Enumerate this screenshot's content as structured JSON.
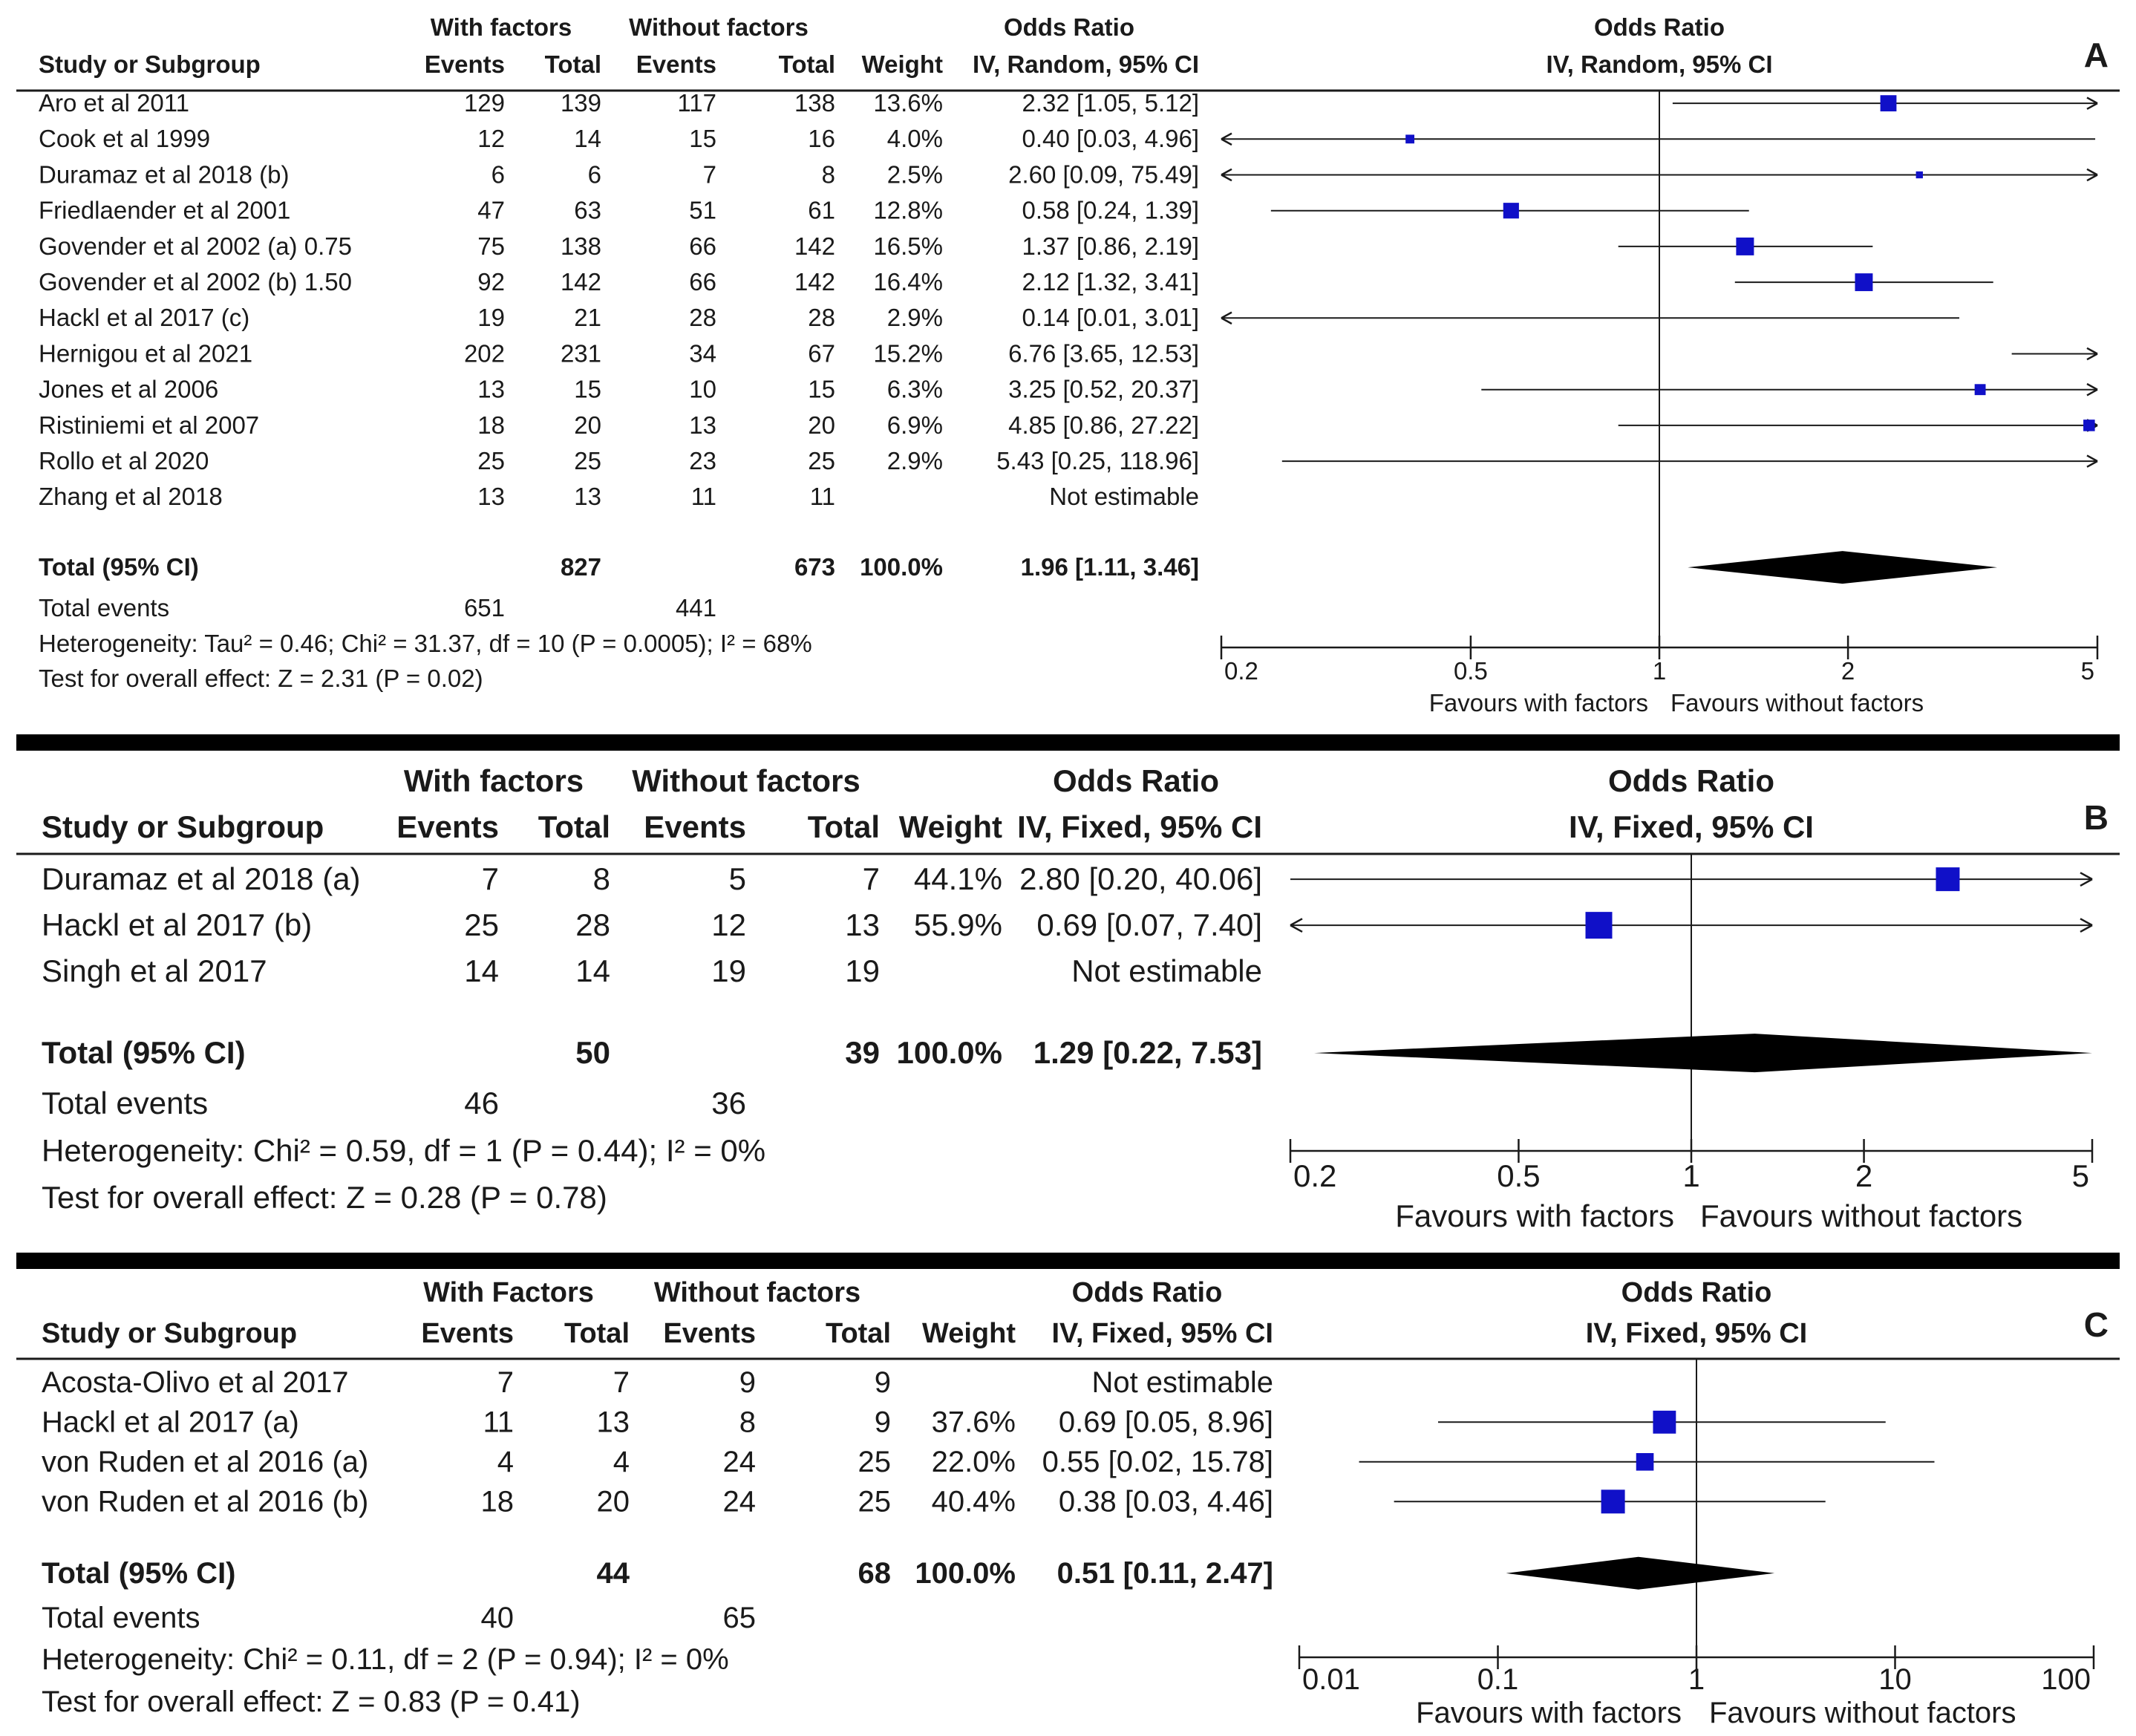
{
  "chart_data": [
    {
      "type": "forest",
      "panel_label": "A",
      "headers": {
        "group1": "With factors",
        "group2": "Without factors",
        "study": "Study or Subgroup",
        "events1": "Events",
        "total1": "Total",
        "events2": "Events",
        "total2": "Total",
        "weight": "Weight",
        "or_title": "Odds Ratio",
        "or_method": "IV, Random, 95% CI",
        "plot_title": "Odds Ratio",
        "plot_method": "IV, Random, 95% CI"
      },
      "studies": [
        {
          "name": "Aro et al 2011",
          "e1": "129",
          "t1": "139",
          "e2": "117",
          "t2": "138",
          "weight": "13.6%",
          "ci_text": "2.32 [1.05, 5.12]",
          "or": 2.32,
          "lo": 1.05,
          "hi": 5.12
        },
        {
          "name": "Cook et al 1999",
          "e1": "12",
          "t1": "14",
          "e2": "15",
          "t2": "16",
          "weight": "4.0%",
          "ci_text": "0.40 [0.03, 4.96]",
          "or": 0.4,
          "lo": 0.03,
          "hi": 4.96
        },
        {
          "name": "Duramaz et al 2018 (b)",
          "e1": "6",
          "t1": "6",
          "e2": "7",
          "t2": "8",
          "weight": "2.5%",
          "ci_text": "2.60 [0.09, 75.49]",
          "or": 2.6,
          "lo": 0.09,
          "hi": 75.49
        },
        {
          "name": "Friedlaender et al 2001",
          "e1": "47",
          "t1": "63",
          "e2": "51",
          "t2": "61",
          "weight": "12.8%",
          "ci_text": "0.58 [0.24, 1.39]",
          "or": 0.58,
          "lo": 0.24,
          "hi": 1.39
        },
        {
          "name": "Govender et al 2002  (a) 0.75",
          "e1": "75",
          "t1": "138",
          "e2": "66",
          "t2": "142",
          "weight": "16.5%",
          "ci_text": "1.37 [0.86, 2.19]",
          "or": 1.37,
          "lo": 0.86,
          "hi": 2.19
        },
        {
          "name": "Govender et al 2002  (b) 1.50",
          "e1": "92",
          "t1": "142",
          "e2": "66",
          "t2": "142",
          "weight": "16.4%",
          "ci_text": "2.12 [1.32, 3.41]",
          "or": 2.12,
          "lo": 1.32,
          "hi": 3.41
        },
        {
          "name": "Hackl et al 2017 (c)",
          "e1": "19",
          "t1": "21",
          "e2": "28",
          "t2": "28",
          "weight": "2.9%",
          "ci_text": "0.14 [0.01, 3.01]",
          "or": 0.14,
          "lo": 0.01,
          "hi": 3.01
        },
        {
          "name": "Hernigou et al 2021",
          "e1": "202",
          "t1": "231",
          "e2": "34",
          "t2": "67",
          "weight": "15.2%",
          "ci_text": "6.76 [3.65, 12.53]",
          "or": 6.76,
          "lo": 3.65,
          "hi": 12.53
        },
        {
          "name": "Jones et al 2006",
          "e1": "13",
          "t1": "15",
          "e2": "10",
          "t2": "15",
          "weight": "6.3%",
          "ci_text": "3.25 [0.52, 20.37]",
          "or": 3.25,
          "lo": 0.52,
          "hi": 20.37
        },
        {
          "name": "Ristiniemi et al 2007",
          "e1": "18",
          "t1": "20",
          "e2": "13",
          "t2": "20",
          "weight": "6.9%",
          "ci_text": "4.85 [0.86, 27.22]",
          "or": 4.85,
          "lo": 0.86,
          "hi": 27.22
        },
        {
          "name": "Rollo et al 2020",
          "e1": "25",
          "t1": "25",
          "e2": "23",
          "t2": "25",
          "weight": "2.9%",
          "ci_text": "5.43 [0.25, 118.96]",
          "or": 5.43,
          "lo": 0.25,
          "hi": 118.96
        },
        {
          "name": "Zhang et al 2018",
          "e1": "13",
          "t1": "13",
          "e2": "11",
          "t2": "11",
          "weight": "",
          "ci_text": "Not estimable",
          "or": null,
          "lo": null,
          "hi": null
        }
      ],
      "total": {
        "label": "Total (95% CI)",
        "t1": "827",
        "t2": "673",
        "weight": "100.0%",
        "ci_text": "1.96 [1.11, 3.46]",
        "or": 1.96,
        "lo": 1.11,
        "hi": 3.46
      },
      "total_events": {
        "label": "Total events",
        "e1": "651",
        "e2": "441"
      },
      "heterogeneity": "Heterogeneity: Tau² = 0.46; Chi² = 31.37, df = 10 (P = 0.0005); I² = 68%",
      "overall_effect": "Test for overall effect: Z = 2.31 (P = 0.02)",
      "axis": {
        "scale": "log",
        "min": 0.2,
        "max": 5,
        "ticks": [
          0.2,
          0.5,
          1,
          2,
          5
        ],
        "tick_labels": [
          "0.2",
          "0.5",
          "1",
          "2",
          "5"
        ]
      },
      "favours_left": "Favours with factors",
      "favours_right": "Favours without factors"
    },
    {
      "type": "forest",
      "panel_label": "B",
      "headers": {
        "group1": "With factors",
        "group2": "Without factors",
        "study": "Study or Subgroup",
        "events1": "Events",
        "total1": "Total",
        "events2": "Events",
        "total2": "Total",
        "weight": "Weight",
        "or_title": "Odds Ratio",
        "or_method": "IV, Fixed, 95% CI",
        "plot_title": "Odds Ratio",
        "plot_method": "IV, Fixed, 95% CI"
      },
      "studies": [
        {
          "name": "Duramaz et al 2018 (a)",
          "e1": "7",
          "t1": "8",
          "e2": "5",
          "t2": "7",
          "weight": "44.1%",
          "ci_text": "2.80 [0.20, 40.06]",
          "or": 2.8,
          "lo": 0.2,
          "hi": 40.06
        },
        {
          "name": "Hackl et al 2017 (b)",
          "e1": "25",
          "t1": "28",
          "e2": "12",
          "t2": "13",
          "weight": "55.9%",
          "ci_text": "0.69 [0.07, 7.40]",
          "or": 0.69,
          "lo": 0.07,
          "hi": 7.4
        },
        {
          "name": "Singh et al 2017",
          "e1": "14",
          "t1": "14",
          "e2": "19",
          "t2": "19",
          "weight": "",
          "ci_text": "Not estimable",
          "or": null,
          "lo": null,
          "hi": null
        }
      ],
      "total": {
        "label": "Total (95% CI)",
        "t1": "50",
        "t2": "39",
        "weight": "100.0%",
        "ci_text": "1.29 [0.22, 7.53]",
        "or": 1.29,
        "lo": 0.22,
        "hi": 7.53
      },
      "total_events": {
        "label": "Total events",
        "e1": "46",
        "e2": "36"
      },
      "heterogeneity": "Heterogeneity: Chi² = 0.59, df = 1 (P = 0.44); I² = 0%",
      "overall_effect": "Test for overall effect: Z = 0.28 (P = 0.78)",
      "axis": {
        "scale": "log",
        "min": 0.2,
        "max": 5,
        "ticks": [
          0.2,
          0.5,
          1,
          2,
          5
        ],
        "tick_labels": [
          "0.2",
          "0.5",
          "1",
          "2",
          "5"
        ]
      },
      "favours_left": "Favours with factors",
      "favours_right": "Favours without factors"
    },
    {
      "type": "forest",
      "panel_label": "C",
      "headers": {
        "group1": "With Factors",
        "group2": "Without factors",
        "study": "Study or Subgroup",
        "events1": "Events",
        "total1": "Total",
        "events2": "Events",
        "total2": "Total",
        "weight": "Weight",
        "or_title": "Odds Ratio",
        "or_method": "IV, Fixed, 95% CI",
        "plot_title": "Odds Ratio",
        "plot_method": "IV, Fixed, 95% CI"
      },
      "studies": [
        {
          "name": "Acosta-Olivo et al  2017",
          "e1": "7",
          "t1": "7",
          "e2": "9",
          "t2": "9",
          "weight": "",
          "ci_text": "Not estimable",
          "or": null,
          "lo": null,
          "hi": null
        },
        {
          "name": "Hackl et al 2017 (a)",
          "e1": "11",
          "t1": "13",
          "e2": "8",
          "t2": "9",
          "weight": "37.6%",
          "ci_text": "0.69 [0.05, 8.96]",
          "or": 0.69,
          "lo": 0.05,
          "hi": 8.96
        },
        {
          "name": "von Ruden et al 2016 (a)",
          "e1": "4",
          "t1": "4",
          "e2": "24",
          "t2": "25",
          "weight": "22.0%",
          "ci_text": "0.55 [0.02, 15.78]",
          "or": 0.55,
          "lo": 0.02,
          "hi": 15.78
        },
        {
          "name": "von Ruden et al 2016 (b)",
          "e1": "18",
          "t1": "20",
          "e2": "24",
          "t2": "25",
          "weight": "40.4%",
          "ci_text": "0.38 [0.03, 4.46]",
          "or": 0.38,
          "lo": 0.03,
          "hi": 4.46
        }
      ],
      "total": {
        "label": "Total (95% CI)",
        "t1": "44",
        "t2": "68",
        "weight": "100.0%",
        "ci_text": "0.51 [0.11, 2.47]",
        "or": 0.51,
        "lo": 0.11,
        "hi": 2.47
      },
      "total_events": {
        "label": "Total events",
        "e1": "40",
        "e2": "65"
      },
      "heterogeneity": "Heterogeneity: Chi² = 0.11, df = 2 (P = 0.94); I² = 0%",
      "overall_effect": "Test for overall effect: Z = 0.83 (P = 0.41)",
      "axis": {
        "scale": "log",
        "min": 0.01,
        "max": 100,
        "ticks": [
          0.01,
          0.1,
          1,
          10,
          100
        ],
        "tick_labels": [
          "0.01",
          "0.1",
          "1",
          "10",
          "100"
        ]
      },
      "favours_left": "Favours with factors",
      "favours_right": "Favours without factors"
    }
  ],
  "colors": {
    "square": "#1010c8",
    "line": "#1a1a1a",
    "diamond": "#000000",
    "separator": "#000000"
  }
}
